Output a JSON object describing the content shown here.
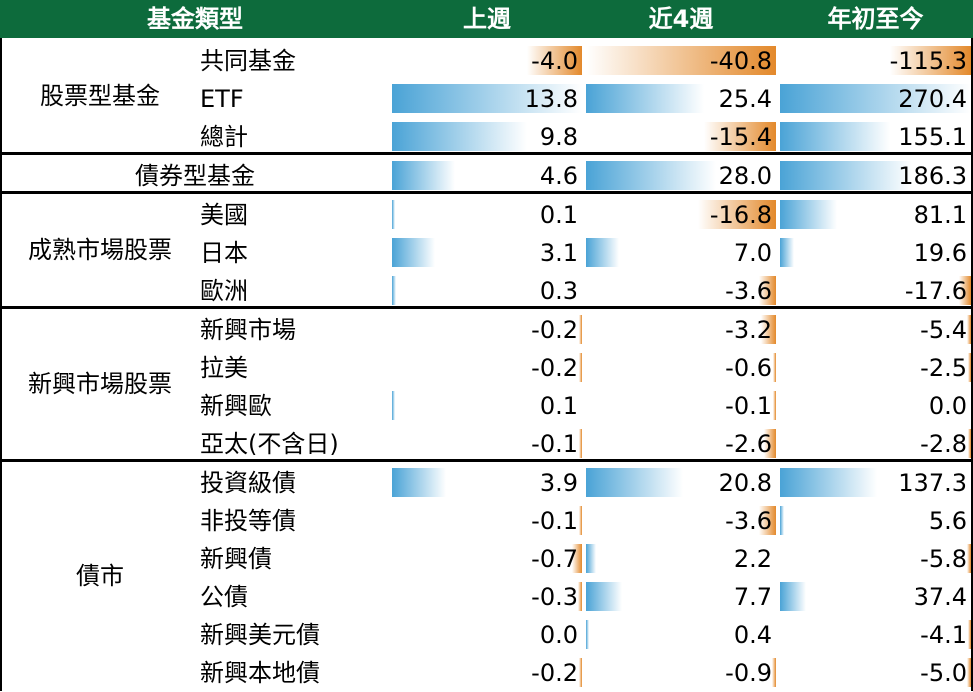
{
  "header": {
    "type_label": "基金類型",
    "columns": [
      "上週",
      "近4週",
      "年初至今"
    ]
  },
  "colors": {
    "header_bg": "#0d6b3c",
    "positive_bar": "#4aa3d6",
    "negative_bar": "#e3892b"
  },
  "chart_data": {
    "type": "table",
    "columns": [
      "上週",
      "近4週",
      "年初至今"
    ],
    "groups": [
      {
        "name": "股票型基金",
        "rows": [
          {
            "label": "共同基金",
            "values": [
              -4.0,
              -40.8,
              -115.3
            ],
            "display": [
              "-4.0",
              "-40.8",
              "-115.3"
            ]
          },
          {
            "label": "ETF",
            "values": [
              13.8,
              25.4,
              270.4
            ],
            "display": [
              "13.8",
              "25.4",
              "270.4"
            ]
          },
          {
            "label": "總計",
            "values": [
              9.8,
              -15.4,
              155.1
            ],
            "display": [
              "9.8",
              "-15.4",
              "155.1"
            ]
          }
        ]
      },
      {
        "name": "",
        "rows": [
          {
            "label": "債券型基金",
            "values": [
              4.6,
              28.0,
              186.3
            ],
            "display": [
              "4.6",
              "28.0",
              "186.3"
            ]
          }
        ]
      },
      {
        "name": "成熟市場股票",
        "rows": [
          {
            "label": "美國",
            "values": [
              0.1,
              -16.8,
              81.1
            ],
            "display": [
              "0.1",
              "-16.8",
              "81.1"
            ]
          },
          {
            "label": "日本",
            "values": [
              3.1,
              7.0,
              19.6
            ],
            "display": [
              "3.1",
              "7.0",
              "19.6"
            ]
          },
          {
            "label": "歐洲",
            "values": [
              0.3,
              -3.6,
              -17.6
            ],
            "display": [
              "0.3",
              "-3.6",
              "-17.6"
            ]
          }
        ]
      },
      {
        "name": "新興市場股票",
        "rows": [
          {
            "label": "新興市場",
            "values": [
              -0.2,
              -3.2,
              -5.4
            ],
            "display": [
              "-0.2",
              "-3.2",
              "-5.4"
            ]
          },
          {
            "label": "拉美",
            "values": [
              -0.2,
              -0.6,
              -2.5
            ],
            "display": [
              "-0.2",
              "-0.6",
              "-2.5"
            ]
          },
          {
            "label": "新興歐",
            "values": [
              0.1,
              -0.1,
              0.0
            ],
            "display": [
              "0.1",
              "-0.1",
              "0.0"
            ]
          },
          {
            "label": "亞太(不含日)",
            "values": [
              -0.1,
              -2.6,
              -2.8
            ],
            "display": [
              "-0.1",
              "-2.6",
              "-2.8"
            ]
          }
        ]
      },
      {
        "name": "債市",
        "rows": [
          {
            "label": "投資級債",
            "values": [
              3.9,
              20.8,
              137.3
            ],
            "display": [
              "3.9",
              "20.8",
              "137.3"
            ]
          },
          {
            "label": "非投等債",
            "values": [
              -0.1,
              -3.6,
              5.6
            ],
            "display": [
              "-0.1",
              "-3.6",
              "5.6"
            ]
          },
          {
            "label": "新興債",
            "values": [
              -0.7,
              2.2,
              -5.8
            ],
            "display": [
              "-0.7",
              "2.2",
              "-5.8"
            ]
          },
          {
            "label": "公債",
            "values": [
              -0.3,
              7.7,
              37.4
            ],
            "display": [
              "-0.3",
              "7.7",
              "37.4"
            ]
          },
          {
            "label": "新興美元債",
            "values": [
              0.0,
              0.4,
              -4.1
            ],
            "display": [
              "0.0",
              "0.4",
              "-4.1"
            ]
          },
          {
            "label": "新興本地債",
            "values": [
              -0.2,
              -0.9,
              -5.0
            ],
            "display": [
              "-0.2",
              "-0.9",
              "-5.0"
            ]
          }
        ]
      }
    ]
  }
}
